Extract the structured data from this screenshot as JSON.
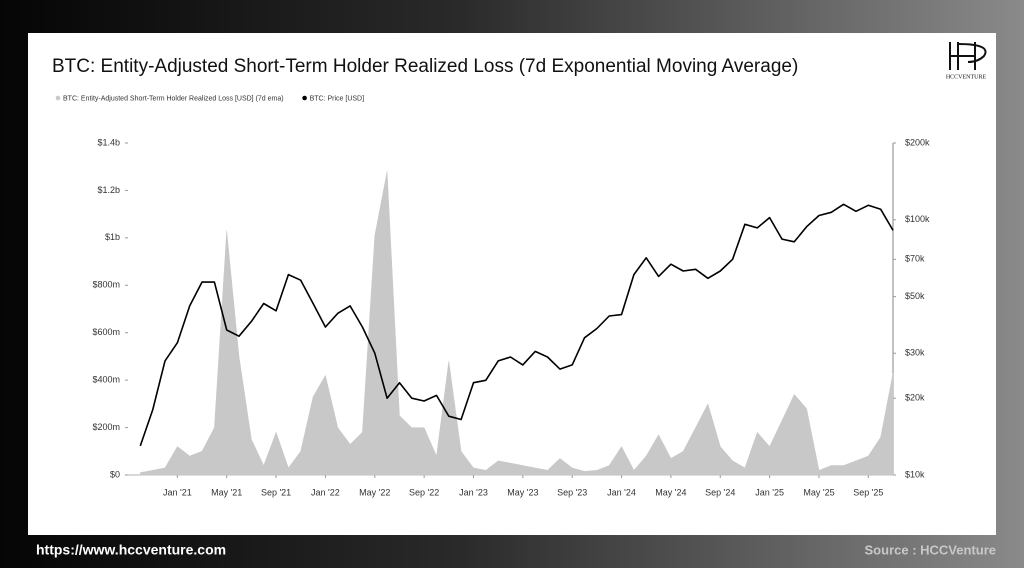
{
  "chart_data": {
    "type": "area_line",
    "title": "BTC: Entity-Adjusted Short-Term Holder Realized Loss (7d Exponential Moving Average)",
    "x": [
      "2020-10",
      "2020-11",
      "2020-12",
      "2021-01",
      "2021-02",
      "2021-03",
      "2021-04",
      "2021-05",
      "2021-06",
      "2021-07",
      "2021-08",
      "2021-09",
      "2021-10",
      "2021-11",
      "2021-12",
      "2022-01",
      "2022-02",
      "2022-03",
      "2022-04",
      "2022-05",
      "2022-06",
      "2022-07",
      "2022-08",
      "2022-09",
      "2022-10",
      "2022-11",
      "2022-12",
      "2023-01",
      "2023-02",
      "2023-03",
      "2023-04",
      "2023-05",
      "2023-06",
      "2023-07",
      "2023-08",
      "2023-09",
      "2023-10",
      "2023-11",
      "2023-12",
      "2024-01",
      "2024-02",
      "2024-03",
      "2024-04",
      "2024-05",
      "2024-06",
      "2024-07",
      "2024-08",
      "2024-09",
      "2024-10",
      "2024-11",
      "2024-12",
      "2025-01",
      "2025-02",
      "2025-03",
      "2025-04",
      "2025-05",
      "2025-06",
      "2025-07",
      "2025-08",
      "2025-09",
      "2025-10",
      "2025-11"
    ],
    "series": [
      {
        "name": "BTC: Entity-Adjusted Short-Term Holder Realized Loss [USD] (7d ema)",
        "color": "#c8c8c8",
        "axis": "y",
        "values": [
          10000000,
          20000000,
          30000000,
          120000000,
          80000000,
          100000000,
          200000000,
          1030000000,
          500000000,
          150000000,
          40000000,
          180000000,
          30000000,
          100000000,
          330000000,
          420000000,
          200000000,
          130000000,
          180000000,
          1010000000,
          1280000000,
          250000000,
          200000000,
          200000000,
          80000000,
          480000000,
          100000000,
          30000000,
          20000000,
          60000000,
          50000000,
          40000000,
          30000000,
          20000000,
          70000000,
          30000000,
          15000000,
          20000000,
          40000000,
          120000000,
          20000000,
          80000000,
          170000000,
          70000000,
          100000000,
          200000000,
          300000000,
          120000000,
          60000000,
          30000000,
          180000000,
          120000000,
          230000000,
          340000000,
          280000000,
          20000000,
          40000000,
          40000000,
          60000000,
          80000000,
          160000000,
          430000000
        ]
      },
      {
        "name": "BTC: Price [USD]",
        "color": "#000000",
        "axis": "y2",
        "values": [
          13000,
          18000,
          28000,
          33000,
          46000,
          57000,
          57000,
          37000,
          35000,
          40000,
          47000,
          44000,
          61000,
          58000,
          47000,
          38000,
          43000,
          46000,
          38000,
          30000,
          20000,
          23000,
          20000,
          19500,
          20500,
          17000,
          16500,
          23000,
          23500,
          28000,
          29000,
          27000,
          30500,
          29000,
          26000,
          27000,
          34500,
          37500,
          42000,
          42500,
          61000,
          71000,
          60000,
          67000,
          63000,
          64000,
          59000,
          63000,
          70000,
          96000,
          93000,
          102000,
          84000,
          82000,
          94000,
          104000,
          107000,
          115000,
          108000,
          114000,
          110000,
          91000
        ]
      }
    ],
    "xlim": [
      "2020-09",
      "2025-11"
    ],
    "xticks": [
      {
        "value": "2021-01",
        "label": "Jan '21"
      },
      {
        "value": "2021-05",
        "label": "May '21"
      },
      {
        "value": "2021-09",
        "label": "Sep '21"
      },
      {
        "value": "2022-01",
        "label": "Jan '22"
      },
      {
        "value": "2022-05",
        "label": "May '22"
      },
      {
        "value": "2022-09",
        "label": "Sep '22"
      },
      {
        "value": "2023-01",
        "label": "Jan '23"
      },
      {
        "value": "2023-05",
        "label": "May '23"
      },
      {
        "value": "2023-09",
        "label": "Sep '23"
      },
      {
        "value": "2024-01",
        "label": "Jan '24"
      },
      {
        "value": "2024-05",
        "label": "May '24"
      },
      {
        "value": "2024-09",
        "label": "Sep '24"
      },
      {
        "value": "2025-01",
        "label": "Jan '25"
      },
      {
        "value": "2025-05",
        "label": "May '25"
      },
      {
        "value": "2025-09",
        "label": "Sep '25"
      }
    ],
    "ylim": [
      0,
      1400000000
    ],
    "yticks": [
      {
        "value": 0,
        "label": "$0"
      },
      {
        "value": 200000000,
        "label": "$200m"
      },
      {
        "value": 400000000,
        "label": "$400m"
      },
      {
        "value": 600000000,
        "label": "$600m"
      },
      {
        "value": 800000000,
        "label": "$800m"
      },
      {
        "value": 1000000000,
        "label": "$1b"
      },
      {
        "value": 1200000000,
        "label": "$1.2b"
      },
      {
        "value": 1400000000,
        "label": "$1.4b"
      }
    ],
    "y2lim": [
      10000,
      200000
    ],
    "y2log": true,
    "y2ticks": [
      {
        "value": 10000,
        "label": "$10k"
      },
      {
        "value": 20000,
        "label": "$20k"
      },
      {
        "value": 30000,
        "label": "$30k"
      },
      {
        "value": 50000,
        "label": "$50k"
      },
      {
        "value": 70000,
        "label": "$70k"
      },
      {
        "value": 100000,
        "label": "$100k"
      },
      {
        "value": 200000,
        "label": "$200k"
      }
    ],
    "legend": "top-left",
    "grid": false
  },
  "logo": "HCCVENTURE",
  "footer": {
    "url": "https://www.hccventure.com",
    "source": "Source : HCCVenture"
  }
}
